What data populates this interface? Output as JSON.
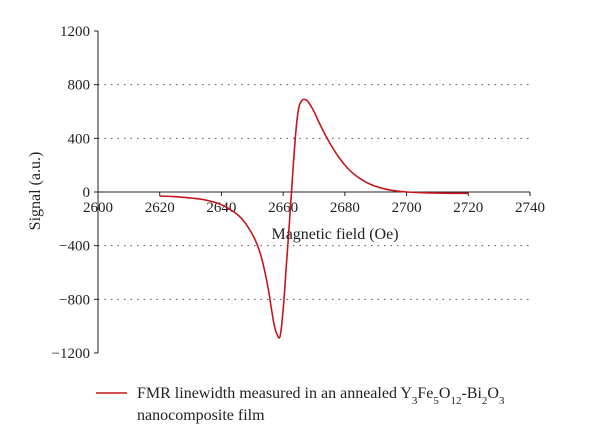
{
  "chart_data": {
    "type": "line",
    "title": "",
    "xlabel": "Magnetic field (Oe)",
    "ylabel": "Signal (a.u.)",
    "xlim": [
      2600,
      2740
    ],
    "ylim": [
      -1200,
      1200
    ],
    "x_ticks": [
      2600,
      2620,
      2640,
      2660,
      2680,
      2700,
      2720,
      2740
    ],
    "x_tick_labels": [
      "2600",
      "2620",
      "2640",
      "2660",
      "2680",
      "2700",
      "2720",
      "2740"
    ],
    "y_ticks": [
      1200,
      800,
      400,
      0,
      -400,
      -800,
      -1200
    ],
    "y_tick_labels": [
      "1200",
      "800",
      "400",
      "0",
      "−400",
      "−800",
      "−1200"
    ],
    "grid": "dotted horizontal",
    "legend_position": "bottom",
    "series": [
      {
        "name": "FMR linewidth measured in an annealed Y3Fe5O12-Bi2O3 nanocomposite film",
        "color": "#c4161c",
        "x": [
          2620,
          2625,
          2630,
          2635,
          2640,
          2645,
          2648,
          2651,
          2653,
          2655,
          2656,
          2657,
          2658,
          2659,
          2660,
          2661,
          2662,
          2663,
          2664,
          2665,
          2666,
          2667,
          2668,
          2670,
          2672,
          2675,
          2678,
          2681,
          2684,
          2688,
          2692,
          2696,
          2700,
          2705,
          2710,
          2715,
          2720
        ],
        "y": [
          -30,
          -35,
          -45,
          -60,
          -95,
          -165,
          -240,
          -360,
          -490,
          -700,
          -840,
          -980,
          -1060,
          -1075,
          -880,
          -560,
          -240,
          100,
          420,
          620,
          680,
          690,
          675,
          600,
          500,
          370,
          260,
          175,
          115,
          60,
          28,
          10,
          0,
          -5,
          -8,
          -10,
          -10
        ]
      }
    ]
  },
  "legend": {
    "line1_prefix": "FMR linewidth measured in an annealed Y",
    "line1_sub1": "3",
    "line1_part2": "Fe",
    "line1_sub2": "5",
    "line1_part3": "O",
    "line1_sub3": "12",
    "line1_part4": "-Bi",
    "line1_sub4": "2",
    "line1_part5": "O",
    "line1_sub5": "3",
    "line2": "nanocomposite film"
  }
}
